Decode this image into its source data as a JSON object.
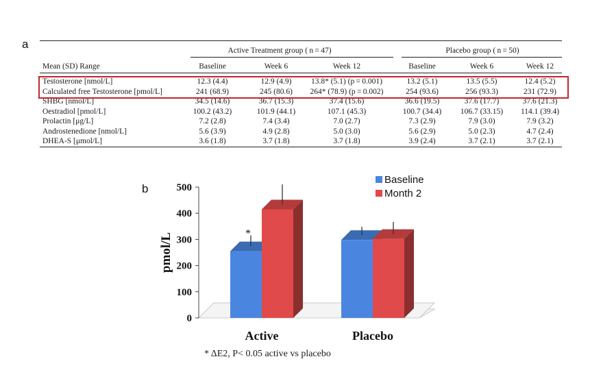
{
  "panel_labels": {
    "a": "a",
    "b": "b"
  },
  "table": {
    "group_headers": [
      {
        "label": "Active Treatment group ( n = 47)"
      },
      {
        "label": "Placebo group ( n = 50)"
      }
    ],
    "columns": [
      "Mean (SD) Range",
      "Baseline",
      "Week 6",
      "Week 12",
      "Baseline",
      "Week 6",
      "Week 12"
    ],
    "rows": [
      [
        "Testosterone [nmol/L]",
        "12.3 (4.4)",
        "12.9 (4.9)",
        "13.8* (5.1) (p = 0.001)",
        "13.2 (5.1)",
        "13.5 (5.5)",
        "12.4 (5.2)"
      ],
      [
        "Calculated free Testosterone [pmol/L]",
        "241 (68.9)",
        "245 (80.6)",
        "264* (78.9) (p = 0.002)",
        "254 (93.6)",
        "256 (93.3)",
        "231 (72.9)"
      ],
      [
        "SHBG [nmol/L]",
        "34.5 (14.6)",
        "36.7 (15.3)",
        "37.4 (15.6)",
        "36.6 (19.5)",
        "37.6 (17.7)",
        "37.6 (21.3)"
      ],
      [
        "Oestradiol [pmol/L]",
        "100.2 (43.2)",
        "101.9 (44.1)",
        "107.1 (45.3)",
        "100.7 (34.4)",
        "106.7 (33.15)",
        "114.1 (39.4)"
      ],
      [
        "Prolactin [μg/L]",
        "7.2 (2.8)",
        "7.4 (3.4)",
        "7.0 (2.7)",
        "7.3 (2.9)",
        "7.9 (3.0)",
        "7.9 (3.2)"
      ],
      [
        "Androstenedione [nmol/L]",
        "5.6 (3.9)",
        "4.9 (2.8)",
        "5.0 (3.0)",
        "5.6 (2.9)",
        "5.0 (2.3)",
        "4.7 (2.4)"
      ],
      [
        "DHEA-S [μmol/L]",
        "3.6 (1.8)",
        "3.7 (1.8)",
        "3.7 (1.8)",
        "3.9 (2.4)",
        "3.7 (2.1)",
        "3.7 (2.1)"
      ]
    ],
    "highlight_color": "#c0272d"
  },
  "chart_data": {
    "type": "bar",
    "categories": [
      "Active",
      "Placebo"
    ],
    "ylabel": "pmol/L",
    "ylim": [
      0,
      500
    ],
    "yticks": [
      "0",
      "100",
      "200",
      "300",
      "400",
      "500"
    ],
    "series": [
      {
        "name": "Baseline",
        "values": [
          255,
          298
        ],
        "error": [
          60,
          50
        ],
        "color": "#4a86e0"
      },
      {
        "name": "Month 2",
        "values": [
          415,
          302
        ],
        "error": [
          95,
          65
        ],
        "color": "#e04a4a"
      }
    ],
    "annotation": "*",
    "legend_position": "top-right",
    "footnote": "* ΔE2, P< 0.05 active vs placebo"
  }
}
